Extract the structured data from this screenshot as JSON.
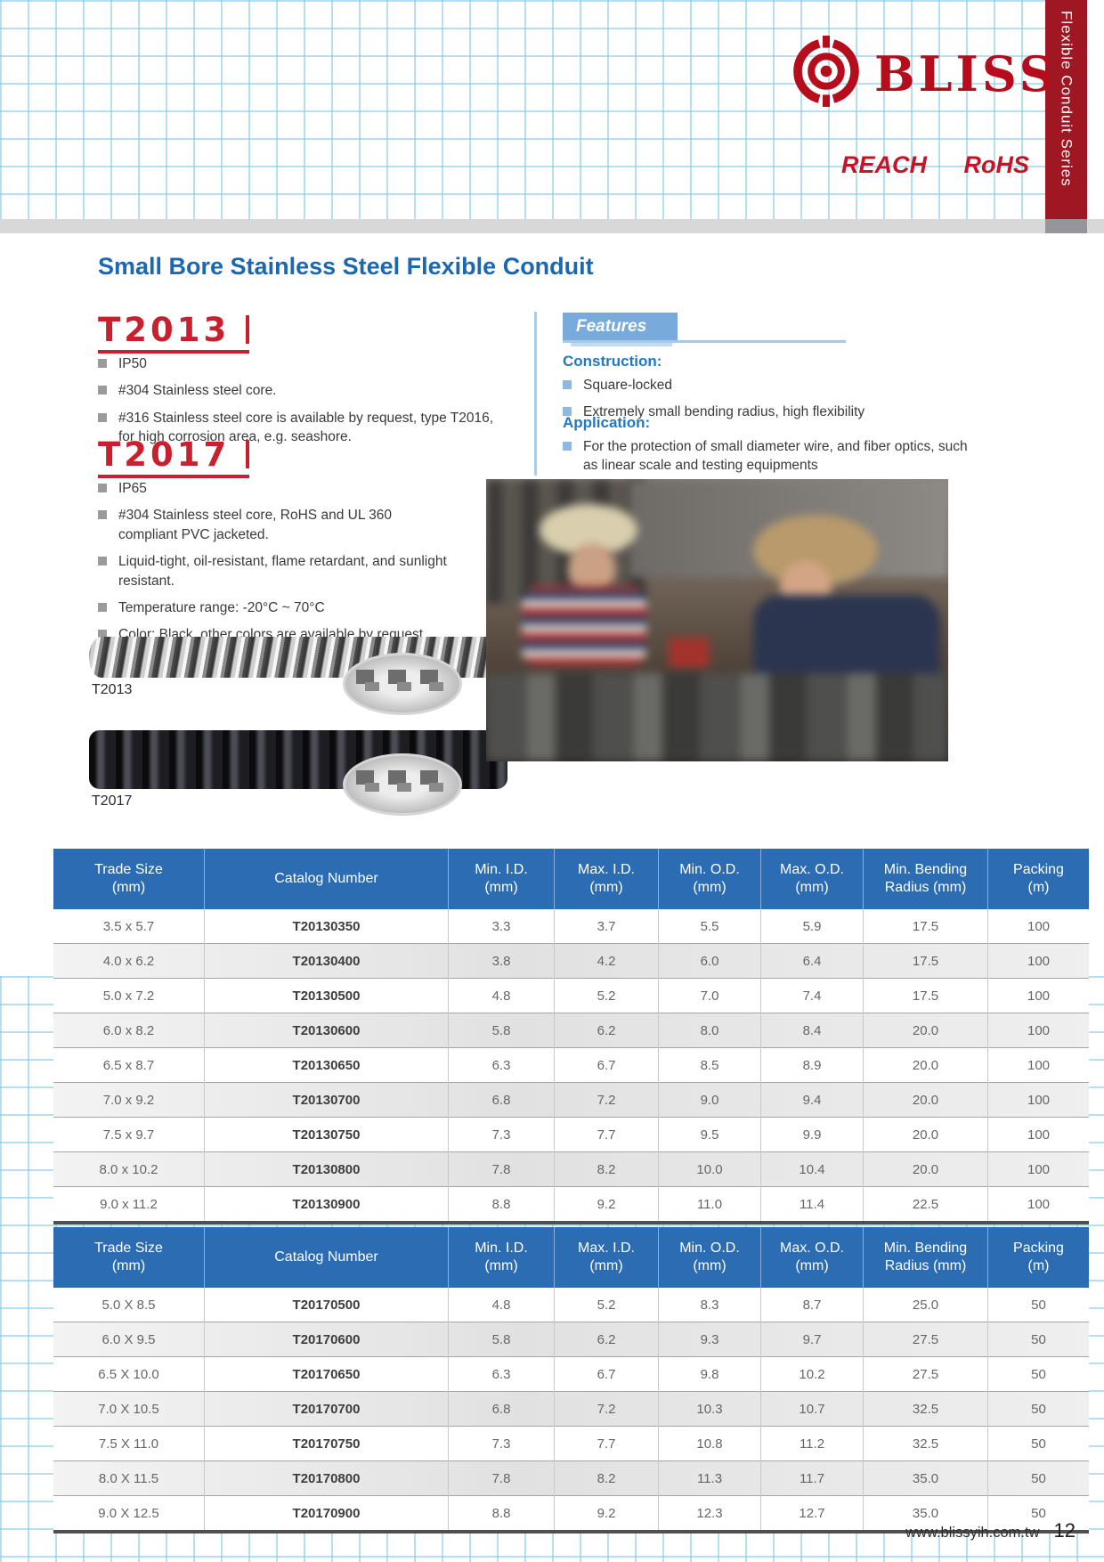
{
  "header": {
    "brand": "BLISS",
    "series_banner": "Flexible Conduit Series",
    "compliance": {
      "reach": "REACH",
      "rohs": "RoHS"
    }
  },
  "page_title": "Small Bore Stainless Steel Flexible Conduit",
  "t2013": {
    "heading": "T2013",
    "bullets": [
      "IP50",
      "#304 Stainless steel core.",
      "#316 Stainless steel core is available by request, type T2016, for high corrosion area, e.g. seashore."
    ],
    "image_label": "T2013"
  },
  "t2017": {
    "heading": "T2017",
    "bullets": [
      "IP65",
      "#304 Stainless steel core, RoHS and UL 360 compliant PVC jacketed.",
      "Liquid-tight, oil-resistant, flame retardant, and sunlight resistant.",
      "Temperature range: -20°C ~ 70°C",
      "Color: Black, other colors are available by request."
    ],
    "image_label": "T2017"
  },
  "features": {
    "heading": "Features",
    "construction_label": "Construction:",
    "construction_items": [
      "Square-locked",
      "Extremely small bending radius, high flexibility"
    ],
    "application_label": "Application:",
    "application_items": [
      "For the protection of small diameter wire, and fiber optics, such as linear scale and testing equipments"
    ]
  },
  "spec_tables": [
    {
      "columns": [
        "Trade Size\n(mm)",
        "Catalog Number",
        "Min. I.D.\n(mm)",
        "Max. I.D.\n(mm)",
        "Min. O.D.\n(mm)",
        "Max. O.D.\n(mm)",
        "Min. Bending\nRadius (mm)",
        "Packing\n(m)"
      ],
      "rows": [
        [
          "3.5 x 5.7",
          "T20130350",
          "3.3",
          "3.7",
          "5.5",
          "5.9",
          "17.5",
          "100"
        ],
        [
          "4.0 x 6.2",
          "T20130400",
          "3.8",
          "4.2",
          "6.0",
          "6.4",
          "17.5",
          "100"
        ],
        [
          "5.0 x 7.2",
          "T20130500",
          "4.8",
          "5.2",
          "7.0",
          "7.4",
          "17.5",
          "100"
        ],
        [
          "6.0 x 8.2",
          "T20130600",
          "5.8",
          "6.2",
          "8.0",
          "8.4",
          "20.0",
          "100"
        ],
        [
          "6.5 x 8.7",
          "T20130650",
          "6.3",
          "6.7",
          "8.5",
          "8.9",
          "20.0",
          "100"
        ],
        [
          "7.0 x 9.2",
          "T20130700",
          "6.8",
          "7.2",
          "9.0",
          "9.4",
          "20.0",
          "100"
        ],
        [
          "7.5 x 9.7",
          "T20130750",
          "7.3",
          "7.7",
          "9.5",
          "9.9",
          "20.0",
          "100"
        ],
        [
          "8.0 x 10.2",
          "T20130800",
          "7.8",
          "8.2",
          "10.0",
          "10.4",
          "20.0",
          "100"
        ],
        [
          "9.0 x 11.2",
          "T20130900",
          "8.8",
          "9.2",
          "11.0",
          "11.4",
          "22.5",
          "100"
        ]
      ]
    },
    {
      "columns": [
        "Trade Size\n(mm)",
        "Catalog Number",
        "Min. I.D.\n(mm)",
        "Max. I.D.\n(mm)",
        "Min. O.D.\n(mm)",
        "Max. O.D.\n(mm)",
        "Min. Bending\nRadius (mm)",
        "Packing\n(m)"
      ],
      "rows": [
        [
          "5.0 X 8.5",
          "T20170500",
          "4.8",
          "5.2",
          "8.3",
          "8.7",
          "25.0",
          "50"
        ],
        [
          "6.0 X 9.5",
          "T20170600",
          "5.8",
          "6.2",
          "9.3",
          "9.7",
          "27.5",
          "50"
        ],
        [
          "6.5 X 10.0",
          "T20170650",
          "6.3",
          "6.7",
          "9.8",
          "10.2",
          "27.5",
          "50"
        ],
        [
          "7.0 X 10.5",
          "T20170700",
          "6.8",
          "7.2",
          "10.3",
          "10.7",
          "32.5",
          "50"
        ],
        [
          "7.5 X 11.0",
          "T20170750",
          "7.3",
          "7.7",
          "10.8",
          "11.2",
          "32.5",
          "50"
        ],
        [
          "8.0 X 11.5",
          "T20170800",
          "7.8",
          "8.2",
          "11.3",
          "11.7",
          "35.0",
          "50"
        ],
        [
          "9.0 X 12.5",
          "T20170900",
          "8.8",
          "9.2",
          "12.3",
          "12.7",
          "35.0",
          "50"
        ]
      ]
    }
  ],
  "footer": {
    "website": "www.blissyih.com.tw",
    "page_number": "12"
  },
  "colors": {
    "brand_red": "#b50d1c",
    "banner_red": "#9e1722",
    "accent_blue": "#1b67b2",
    "table_header_blue": "#2b6cb3",
    "features_blue": "#79aadc"
  }
}
